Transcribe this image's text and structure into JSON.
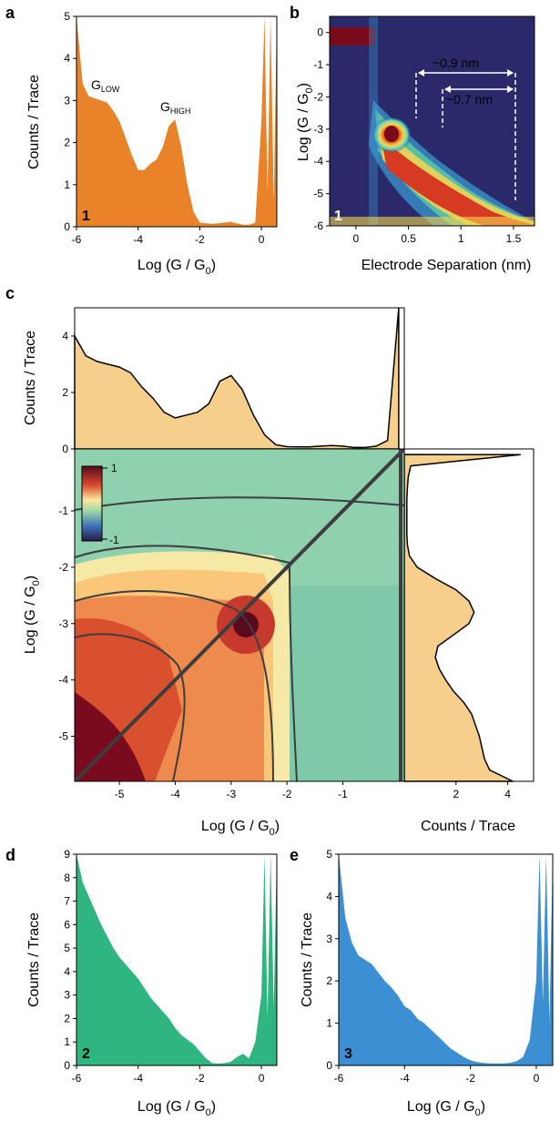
{
  "figure": {
    "panels": {
      "a": "a",
      "b": "b",
      "c": "c",
      "d": "d",
      "e": "e"
    },
    "labels": {
      "counts_trace": "Counts / Trace",
      "logG": "Log (G / G",
      "logG_sub": "0",
      "logG_close": ")",
      "electrode_sep": "Electrode Separation (nm)",
      "mol1": "1",
      "mol2": "2",
      "mol3": "3",
      "g_low_main": "G",
      "g_low_sub": "LOW",
      "g_high_main": "G",
      "g_high_sub": "HIGH",
      "ann_09": "~0.9 nm",
      "ann_07": "~0.7 nm",
      "cbar_max": "1",
      "cbar_min": "-1"
    },
    "colors": {
      "orange": "#E8832A",
      "green": "#2FB57F",
      "blue": "#3C8FD2",
      "tan": "#F7CF8D",
      "heat_bg": "#2A2A6B"
    }
  },
  "chart_data": [
    {
      "id": "a",
      "type": "area",
      "xlabel": "Log (G / G0)",
      "ylabel": "Counts / Trace",
      "xlim": [
        -6,
        0.5
      ],
      "ylim": [
        0,
        5
      ],
      "xticks": [
        -6,
        -4,
        -2,
        0
      ],
      "yticks": [
        0,
        1,
        2,
        3,
        4,
        5
      ],
      "x": [
        -6,
        -5.8,
        -5.6,
        -5.4,
        -5.2,
        -5.0,
        -4.8,
        -4.6,
        -4.4,
        -4.2,
        -4.0,
        -3.8,
        -3.6,
        -3.4,
        -3.2,
        -3.0,
        -2.8,
        -2.6,
        -2.4,
        -2.2,
        -2.0,
        -1.8,
        -1.6,
        -1.4,
        -1.2,
        -1.0,
        -0.8,
        -0.6,
        -0.4,
        -0.2,
        0.0,
        0.1,
        0.2,
        0.3,
        0.4,
        0.5
      ],
      "values": [
        5.0,
        3.4,
        3.1,
        3.05,
        3.0,
        2.95,
        2.75,
        2.5,
        2.1,
        1.7,
        1.35,
        1.35,
        1.5,
        1.6,
        1.9,
        2.4,
        2.55,
        1.9,
        1.0,
        0.35,
        0.1,
        0.08,
        0.07,
        0.08,
        0.1,
        0.12,
        0.08,
        0.05,
        0.05,
        0.1,
        2.5,
        5.0,
        0.8,
        5.0,
        0.6,
        5.0
      ],
      "annotations": [
        "GLOW",
        "GHIGH"
      ],
      "molecule": "1"
    },
    {
      "id": "b",
      "type": "heatmap",
      "xlabel": "Electrode Separation (nm)",
      "ylabel": "Log (G / G0)",
      "xlim": [
        -0.25,
        1.7
      ],
      "ylim": [
        -6,
        0.5
      ],
      "xticks": [
        0.0,
        0.5,
        1.0,
        1.5
      ],
      "yticks": [
        0,
        -1,
        -2,
        -3,
        -4,
        -5,
        -6
      ],
      "annotations": [
        "~0.9 nm",
        "~0.7 nm"
      ],
      "molecule": "1"
    },
    {
      "id": "c",
      "type": "heatmap",
      "xlabel": "Log (G / G0)",
      "ylabel": "Log (G / G0)",
      "xlim": [
        -5.8,
        0.1
      ],
      "ylim": [
        -5.8,
        0.1
      ],
      "xticks": [
        -5,
        -4,
        -3,
        -2,
        -1
      ],
      "yticks": [
        -1,
        -2,
        -3,
        -4,
        -5
      ],
      "colorbar": [
        1,
        -1
      ],
      "top_hist": {
        "ylabel": "Counts / Trace",
        "ylim": [
          0,
          5
        ],
        "yticks": [
          0,
          2,
          4
        ],
        "x": [
          -5.8,
          -5.6,
          -5.4,
          -5.2,
          -5.0,
          -4.8,
          -4.6,
          -4.4,
          -4.2,
          -4.0,
          -3.8,
          -3.6,
          -3.4,
          -3.2,
          -3.0,
          -2.8,
          -2.6,
          -2.4,
          -2.2,
          -2.0,
          -1.8,
          -1.6,
          -1.4,
          -1.2,
          -1.0,
          -0.8,
          -0.6,
          -0.4,
          -0.2,
          0.0
        ],
        "values": [
          4.0,
          3.3,
          3.1,
          3.0,
          2.9,
          2.7,
          2.2,
          1.8,
          1.3,
          1.1,
          1.2,
          1.3,
          1.6,
          2.4,
          2.6,
          2.1,
          1.2,
          0.5,
          0.15,
          0.08,
          0.07,
          0.07,
          0.1,
          0.12,
          0.1,
          0.05,
          0.05,
          0.1,
          0.3,
          5.0
        ]
      },
      "right_hist": {
        "xlabel": "Counts / Trace",
        "xlim": [
          0,
          5
        ],
        "xticks": [
          2,
          4
        ],
        "y": [
          0.0,
          -0.2,
          -0.4,
          -0.6,
          -0.8,
          -1.0,
          -1.2,
          -1.4,
          -1.6,
          -1.8,
          -2.0,
          -2.2,
          -2.4,
          -2.6,
          -2.8,
          -3.0,
          -3.2,
          -3.4,
          -3.6,
          -3.8,
          -4.0,
          -4.2,
          -4.4,
          -4.6,
          -4.8,
          -5.0,
          -5.2,
          -5.4,
          -5.6,
          -5.8
        ],
        "values": [
          4.5,
          0.25,
          0.15,
          0.12,
          0.1,
          0.1,
          0.1,
          0.1,
          0.12,
          0.2,
          0.5,
          1.2,
          2.0,
          2.5,
          2.7,
          2.5,
          1.9,
          1.3,
          1.2,
          1.35,
          1.6,
          1.9,
          2.3,
          2.6,
          2.75,
          2.9,
          3.0,
          3.1,
          3.3,
          4.2
        ]
      }
    },
    {
      "id": "d",
      "type": "area",
      "xlabel": "Log (G / G0)",
      "ylabel": "Counts / Trace",
      "xlim": [
        -6,
        0.5
      ],
      "ylim": [
        0,
        9
      ],
      "xticks": [
        -6,
        -4,
        -2,
        0
      ],
      "yticks": [
        0,
        1,
        2,
        3,
        4,
        5,
        6,
        7,
        8,
        9
      ],
      "x": [
        -6,
        -5.8,
        -5.6,
        -5.4,
        -5.2,
        -5.0,
        -4.8,
        -4.6,
        -4.4,
        -4.2,
        -4.0,
        -3.8,
        -3.6,
        -3.4,
        -3.2,
        -3.0,
        -2.8,
        -2.6,
        -2.4,
        -2.2,
        -2.0,
        -1.8,
        -1.6,
        -1.4,
        -1.2,
        -1.0,
        -0.8,
        -0.6,
        -0.4,
        -0.2,
        0.0,
        0.1,
        0.2,
        0.3,
        0.4,
        0.5
      ],
      "values": [
        9.0,
        7.8,
        7.2,
        6.6,
        6.0,
        5.5,
        5.0,
        4.6,
        4.3,
        4.0,
        3.7,
        3.3,
        2.9,
        2.6,
        2.3,
        2.0,
        1.6,
        1.3,
        1.1,
        0.9,
        0.6,
        0.3,
        0.1,
        0.08,
        0.1,
        0.15,
        0.35,
        0.5,
        0.3,
        1.0,
        3.0,
        9.0,
        2.0,
        9.0,
        2.5,
        9.0
      ],
      "molecule": "2"
    },
    {
      "id": "e",
      "type": "area",
      "xlabel": "Log (G / G0)",
      "ylabel": "Counts / Trace",
      "xlim": [
        -6,
        0.5
      ],
      "ylim": [
        0,
        5
      ],
      "xticks": [
        -6,
        -4,
        -2,
        0
      ],
      "yticks": [
        0,
        1,
        2,
        3,
        4,
        5
      ],
      "x": [
        -6,
        -5.8,
        -5.6,
        -5.4,
        -5.2,
        -5.0,
        -4.8,
        -4.6,
        -4.4,
        -4.2,
        -4.0,
        -3.8,
        -3.6,
        -3.4,
        -3.2,
        -3.0,
        -2.8,
        -2.6,
        -2.4,
        -2.2,
        -2.0,
        -1.8,
        -1.6,
        -1.4,
        -1.2,
        -1.0,
        -0.8,
        -0.6,
        -0.4,
        -0.2,
        0.0,
        0.1,
        0.2,
        0.3,
        0.4,
        0.5
      ],
      "values": [
        5.0,
        3.5,
        2.9,
        2.6,
        2.5,
        2.4,
        2.2,
        2.0,
        1.85,
        1.65,
        1.4,
        1.3,
        1.1,
        1.0,
        0.85,
        0.7,
        0.55,
        0.4,
        0.3,
        0.2,
        0.12,
        0.08,
        0.06,
        0.05,
        0.05,
        0.05,
        0.06,
        0.1,
        0.2,
        0.6,
        2.0,
        5.0,
        1.5,
        5.0,
        1.0,
        5.0
      ],
      "molecule": "3"
    }
  ]
}
